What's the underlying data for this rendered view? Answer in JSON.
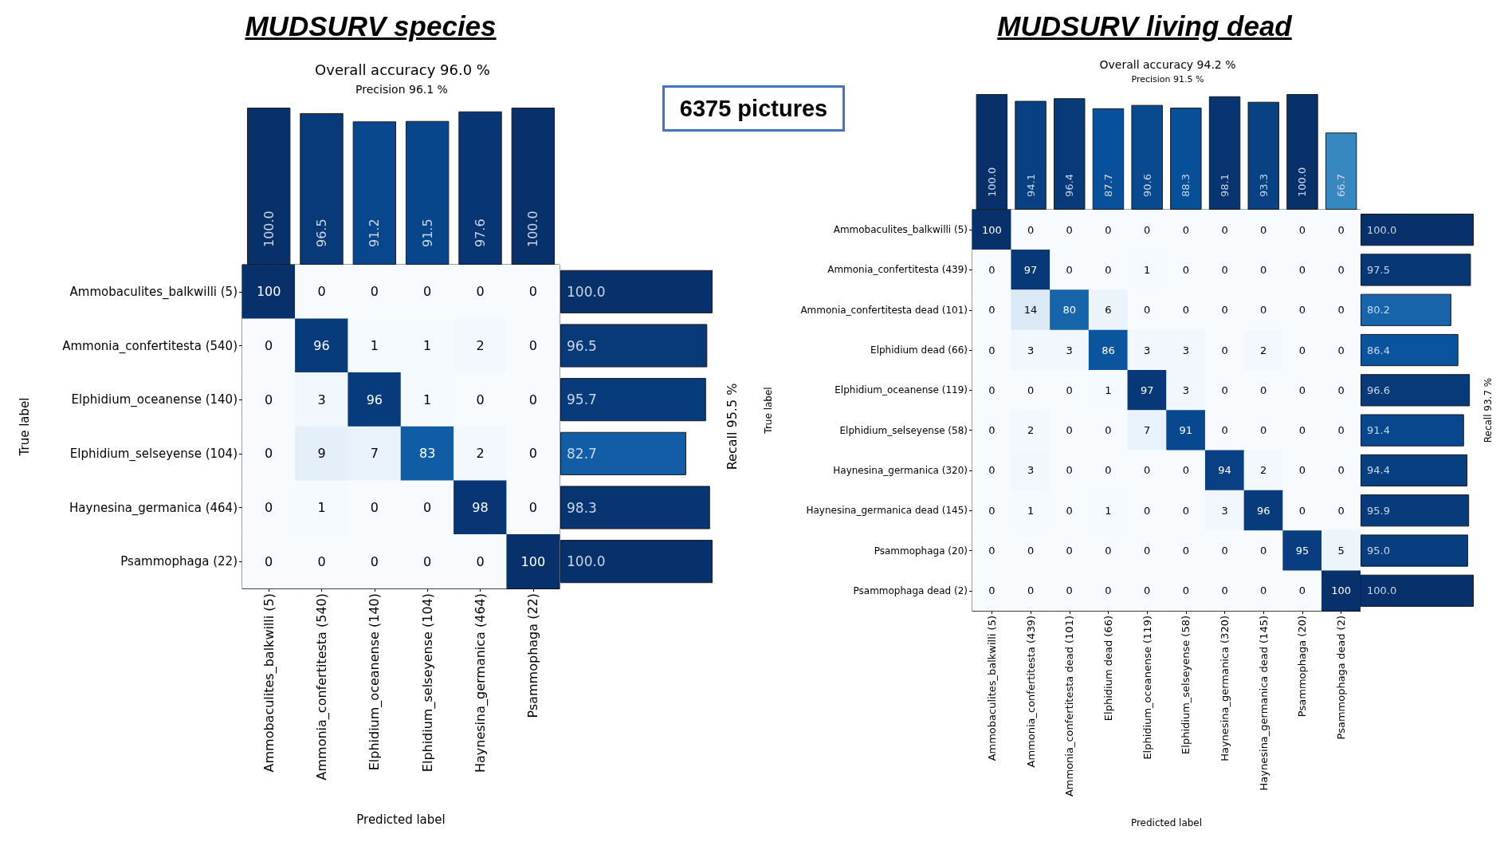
{
  "chart_data": [
    {
      "type": "heatmap",
      "xlabel": "Predicted label",
      "ylabel": "True label",
      "categories": [
        "Ammobaculites_balkwilli (5)",
        "Ammonia_confertitesta (540)",
        "Elphidium_oceanense (140)",
        "Elphidium_selseyense (104)",
        "Haynesina_germanica (464)",
        "Psammophaga (22)"
      ],
      "y_categories": [
        "Ammobaculites_balkwilli (5)",
        "Ammonia_confertitesta (540)",
        "Elphidium_oceanense (140)",
        "Elphidium_selseyense (104)",
        "Haynesina_germanica (464)",
        "Psammophaga (22)"
      ],
      "cells": [
        [
          100,
          0,
          0,
          0,
          0,
          0
        ],
        [
          0,
          96,
          1,
          1,
          2,
          0
        ],
        [
          0,
          3,
          96,
          1,
          0,
          0
        ],
        [
          0,
          9,
          7,
          83,
          2,
          0
        ],
        [
          0,
          1,
          0,
          0,
          98,
          0
        ],
        [
          0,
          0,
          0,
          0,
          0,
          100
        ]
      ],
      "data_labels": true
    },
    {
      "type": "bar",
      "title": "MUDSURV species",
      "subtitle": "Overall accuracy 96.0 %",
      "annotations": [
        "Precision 96.1 %"
      ],
      "categories": [
        null,
        null,
        null,
        null,
        null,
        null
      ],
      "values": [
        100,
        96.5,
        91.2,
        91.5,
        97.6,
        100
      ],
      "colors": [
        "#08306b",
        "#083979",
        "#08478e",
        "#08468c",
        "#083674",
        "#08306b"
      ],
      "value_labels": [
        "100.0",
        "96.5",
        "91.2",
        "91.5",
        "97.6",
        "100.0"
      ],
      "tick_labels": false
    },
    {
      "type": "bar",
      "orientation": "horizontal",
      "ylabel": "Recall 95.5 %",
      "categories": [
        null,
        null,
        null,
        null,
        null,
        null
      ],
      "values": [
        100,
        96.5,
        95.7,
        82.7,
        98.3,
        100
      ],
      "colors": [
        "#08306b",
        "#083979",
        "#083b7c",
        "#125da6",
        "#083472",
        "#08306b"
      ],
      "value_labels": [
        "100.0",
        "96.5",
        "95.7",
        "82.7",
        "98.3",
        "100.0"
      ],
      "tick_labels": false
    },
    {
      "type": "other",
      "annotations": [
        "6375 pictures"
      ]
    },
    {
      "type": "heatmap",
      "xlabel": "Predicted label",
      "ylabel": "True label",
      "categories": [
        "Ammobaculites_balkwilli (5)",
        "Ammonia_confertitesta (439)",
        "Ammonia_confertitesta dead (101)",
        "Elphidium dead (66)",
        "Elphidium_oceanense (119)",
        "Elphidium_selseyense (58)",
        "Haynesina_germanica (320)",
        "Haynesina_germanica dead (145)",
        "Psammophaga (20)",
        "Psammophaga dead (2)"
      ],
      "y_categories": [
        "Ammobaculites_balkwilli (5)",
        "Ammonia_confertitesta (439)",
        "Ammonia_confertitesta dead (101)",
        "Elphidium dead (66)",
        "Elphidium_oceanense (119)",
        "Elphidium_selseyense (58)",
        "Haynesina_germanica (320)",
        "Haynesina_germanica dead (145)",
        "Psammophaga (20)",
        "Psammophaga dead (2)"
      ],
      "cells": [
        [
          100,
          0,
          0,
          0,
          0,
          0,
          0,
          0,
          0,
          0
        ],
        [
          0,
          97,
          0,
          0,
          1,
          0,
          0,
          0,
          0,
          0
        ],
        [
          0,
          14,
          80,
          6,
          0,
          0,
          0,
          0,
          0,
          0
        ],
        [
          0,
          3,
          3,
          86,
          3,
          3,
          0,
          2,
          0,
          0
        ],
        [
          0,
          0,
          0,
          1,
          97,
          3,
          0,
          0,
          0,
          0
        ],
        [
          0,
          2,
          0,
          0,
          7,
          91,
          0,
          0,
          0,
          0
        ],
        [
          0,
          3,
          0,
          0,
          0,
          0,
          94,
          2,
          0,
          0
        ],
        [
          0,
          1,
          0,
          1,
          0,
          0,
          3,
          96,
          0,
          0
        ],
        [
          0,
          0,
          0,
          0,
          0,
          0,
          0,
          0,
          95,
          5
        ],
        [
          0,
          0,
          0,
          0,
          0,
          0,
          0,
          0,
          0,
          100
        ]
      ],
      "data_labels": true
    },
    {
      "type": "bar",
      "title": "MUDSURV living dead",
      "subtitle": "Overall accuracy 94.2 %",
      "annotations": [
        "Precision 91.5 %"
      ],
      "categories": [
        null,
        null,
        null,
        null,
        null,
        null,
        null,
        null,
        null,
        null
      ],
      "values": [
        100,
        94.1,
        96.4,
        87.7,
        90.6,
        88.3,
        98.1,
        93.3,
        100,
        66.7
      ],
      "colors": [
        "#08306b",
        "#084082",
        "#083979",
        "#08509b",
        "#084990",
        "#084f99",
        "#083572",
        "#084285",
        "#08306b",
        "#3787c0"
      ],
      "value_labels": [
        "100.0",
        "94.1",
        "96.4",
        "87.7",
        "90.6",
        "88.3",
        "98.1",
        "93.3",
        "100.0",
        "66.7"
      ],
      "tick_labels": false
    },
    {
      "type": "bar",
      "orientation": "horizontal",
      "ylabel": "Recall 93.7 %",
      "categories": [
        null,
        null,
        null,
        null,
        null,
        null,
        null,
        null,
        null,
        null
      ],
      "values": [
        100,
        97.5,
        80.2,
        86.4,
        96.6,
        91.4,
        94.4,
        95.9,
        95.0,
        100
      ],
      "colors": [
        "#08306b",
        "#083775",
        "#1764ab",
        "#0a549e",
        "#083978",
        "#08478d",
        "#083f81",
        "#083b7b",
        "#083d7f",
        "#08306b"
      ],
      "value_labels": [
        "100.0",
        "97.5",
        "80.2",
        "86.4",
        "96.6",
        "91.4",
        "94.4",
        "95.9",
        "95.0",
        "100.0"
      ],
      "tick_labels": false
    }
  ]
}
